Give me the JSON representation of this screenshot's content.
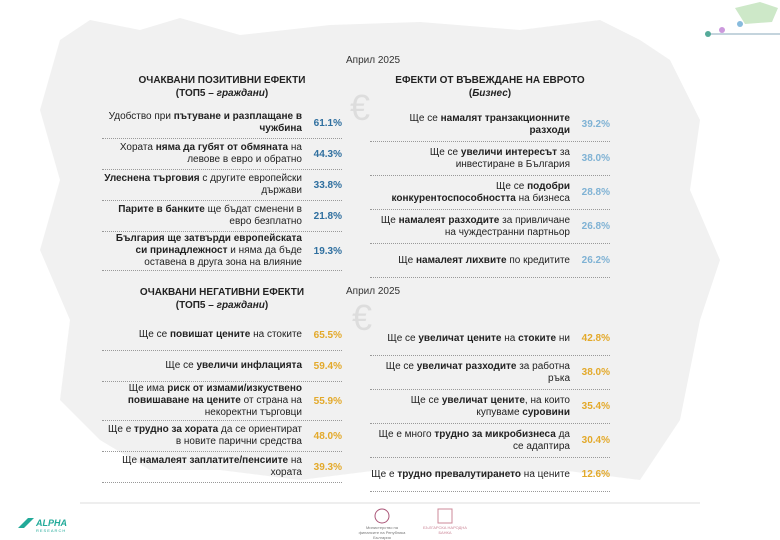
{
  "date_top": "Април 2025",
  "date_bottom": "Април 2025",
  "sections": [
    {
      "title": "ОЧАКВАНИ ПОЗИТИВНИ ЕФЕКТИ",
      "subtitle": [
        {
          "text": "(ТОП5 – "
        },
        {
          "text": "граждани",
          "i": true
        },
        {
          "text": ")"
        }
      ],
      "value_color": "#2f6f9f",
      "rows": [
        {
          "parts": [
            {
              "text": "Удобство при "
            },
            {
              "text": "пътуване и разплащане в чужбина",
              "b": true
            }
          ],
          "value": "61.1%"
        },
        {
          "parts": [
            {
              "text": "Хората "
            },
            {
              "text": "няма да губят от обмяната",
              "b": true
            },
            {
              "text": " на левове в евро и обратно"
            }
          ],
          "value": "44.3%"
        },
        {
          "parts": [
            {
              "text": "Улеснена търговия",
              "b": true
            },
            {
              "text": " с другите европейски държави"
            }
          ],
          "value": "33.8%"
        },
        {
          "parts": [
            {
              "text": "Парите в банките",
              "b": true
            },
            {
              "text": " ще бъдат сменени в евро безплатно"
            }
          ],
          "value": "21.8%"
        },
        {
          "parts": [
            {
              "text": "България ще затвърди европейската си принадлежност",
              "b": true
            },
            {
              "text": " и няма да бъде оставена в друга зона на влияние"
            }
          ],
          "value": "19.3%"
        }
      ]
    },
    {
      "title": "ЕФЕКТИ ОТ ВЪВЕЖДАНЕ НА ЕВРОТО",
      "subtitle": [
        {
          "text": "("
        },
        {
          "text": "Бизнес",
          "i": true
        },
        {
          "text": ")"
        }
      ],
      "value_color": "#7fb2d4",
      "rows": [
        {
          "parts": [
            {
              "text": "Ще се "
            },
            {
              "text": "намалят транзакционните разходи",
              "b": true
            }
          ],
          "value": "39.2%"
        },
        {
          "parts": [
            {
              "text": "Ще се "
            },
            {
              "text": "увеличи интересът",
              "b": true
            },
            {
              "text": " за инвестиране в България"
            }
          ],
          "value": "38.0%"
        },
        {
          "parts": [
            {
              "text": "Ще се "
            },
            {
              "text": "подобри конкурентоспособността",
              "b": true
            },
            {
              "text": " на бизнеса"
            }
          ],
          "value": "28.8%"
        },
        {
          "parts": [
            {
              "text": "Ще "
            },
            {
              "text": "намалеят разходите",
              "b": true
            },
            {
              "text": " за привличане на чуждестранни партньор"
            }
          ],
          "value": "26.8%"
        },
        {
          "parts": [
            {
              "text": "Ще "
            },
            {
              "text": "намалеят лихвите",
              "b": true
            },
            {
              "text": " по кредитите"
            }
          ],
          "value": "26.2%"
        }
      ]
    },
    {
      "title": "ОЧАКВАНИ НЕГАТИВНИ ЕФЕКТИ",
      "subtitle": [
        {
          "text": "(ТОП5 – "
        },
        {
          "text": "граждани",
          "i": true
        },
        {
          "text": ")"
        }
      ],
      "value_color": "#e3a92a",
      "rows": [
        {
          "parts": [
            {
              "text": "Ще се "
            },
            {
              "text": "повишат цените",
              "b": true
            },
            {
              "text": " на стоките"
            }
          ],
          "value": "65.5%"
        },
        {
          "parts": [
            {
              "text": "Ще се "
            },
            {
              "text": "увеличи инфлацията",
              "b": true
            }
          ],
          "value": "59.4%"
        },
        {
          "parts": [
            {
              "text": "Ще има "
            },
            {
              "text": "риск от измами/изкуствено повишаване на цените",
              "b": true
            },
            {
              "text": " от страна на некоректни търговци"
            }
          ],
          "value": "55.9%"
        },
        {
          "parts": [
            {
              "text": "Ще е "
            },
            {
              "text": "трудно за хората",
              "b": true
            },
            {
              "text": " да се ориентират в новите парични средства"
            }
          ],
          "value": "48.0%"
        },
        {
          "parts": [
            {
              "text": "Ще "
            },
            {
              "text": "намалеят заплатите/пенсиите",
              "b": true
            },
            {
              "text": " на хората"
            }
          ],
          "value": "39.3%"
        }
      ]
    },
    {
      "value_color": "#e3a92a",
      "rows": [
        {
          "parts": [
            {
              "text": "Ще се "
            },
            {
              "text": "увеличат цените",
              "b": true
            },
            {
              "text": " на "
            },
            {
              "text": "стоките",
              "b": true
            },
            {
              "text": " ни"
            }
          ],
          "value": "42.8%"
        },
        {
          "parts": [
            {
              "text": "Ще се "
            },
            {
              "text": "увеличат разходите",
              "b": true
            },
            {
              "text": " за работна ръка"
            }
          ],
          "value": "38.0%"
        },
        {
          "parts": [
            {
              "text": "Ще се "
            },
            {
              "text": "увеличат цените",
              "b": true
            },
            {
              "text": ", на които купуваме "
            },
            {
              "text": "суровини",
              "b": true
            }
          ],
          "value": "35.4%"
        },
        {
          "parts": [
            {
              "text": "Ще е много "
            },
            {
              "text": "трудно за микробизнеса",
              "b": true
            },
            {
              "text": " да се адаптира"
            }
          ],
          "value": "30.4%"
        },
        {
          "parts": [
            {
              "text": "Ще е "
            },
            {
              "text": "трудно превалутирането",
              "b": true
            },
            {
              "text": " на цените"
            }
          ],
          "value": "12.6%"
        }
      ]
    }
  ],
  "footer": {
    "brand": "ALPHA",
    "brand_sub": "RESEARCH",
    "logo1": "Министерство на финансите на Република България",
    "logo2": "БЪЛГАРСКА НАРОДНА БАНКА"
  }
}
